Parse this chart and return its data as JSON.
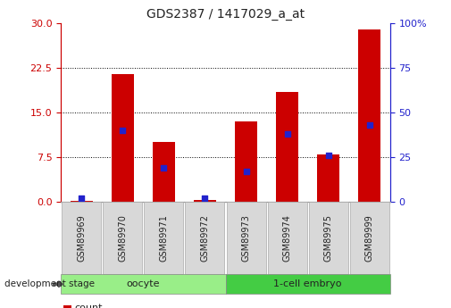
{
  "title": "GDS2387 / 1417029_a_at",
  "samples": [
    "GSM89969",
    "GSM89970",
    "GSM89971",
    "GSM89972",
    "GSM89973",
    "GSM89974",
    "GSM89975",
    "GSM89999"
  ],
  "counts": [
    0.2,
    21.5,
    10.0,
    0.3,
    13.5,
    18.5,
    8.0,
    29.0
  ],
  "percentiles": [
    2,
    40,
    19,
    2,
    17,
    38,
    26,
    43
  ],
  "left_ylim": [
    0,
    30
  ],
  "right_ylim": [
    0,
    100
  ],
  "left_yticks": [
    0,
    7.5,
    15,
    22.5,
    30
  ],
  "right_yticks": [
    0,
    25,
    50,
    75,
    100
  ],
  "bar_color": "#cc0000",
  "dot_color": "#2222cc",
  "group_oocyte_color": "#99ee88",
  "group_embryo_color": "#44cc44",
  "sample_box_color": "#d8d8d8",
  "left_axis_color": "#cc0000",
  "right_axis_color": "#2222cc",
  "bar_width": 0.55,
  "legend_count_color": "#cc0000",
  "legend_percentile_color": "#2222cc"
}
